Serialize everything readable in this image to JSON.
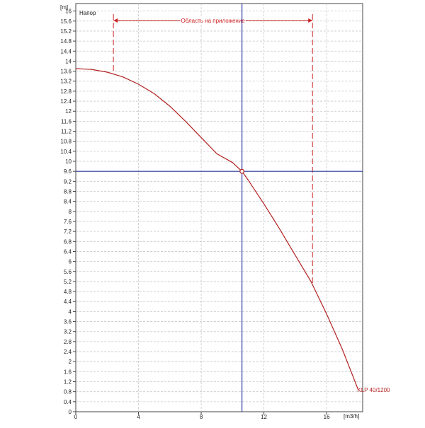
{
  "chart_data": {
    "type": "line",
    "title": "",
    "y_unit": "[m]",
    "x_unit": "[m3/h]",
    "y_series_title": "Напор",
    "xlim": [
      0,
      18.3
    ],
    "ylim": [
      0,
      16.3
    ],
    "x_ticks": [
      0,
      4,
      8,
      12,
      16
    ],
    "y_ticks": [
      0,
      0.4,
      0.8,
      1.2,
      1.6,
      2,
      2.4,
      2.8,
      3.2,
      3.6,
      4,
      4.4,
      4.8,
      5.2,
      5.6,
      6,
      6.4,
      6.8,
      7.2,
      7.6,
      8,
      8.4,
      8.8,
      9.2,
      9.6,
      10,
      10.4,
      10.8,
      11.2,
      11.6,
      12,
      12.4,
      12.8,
      13.2,
      13.6,
      14,
      14.4,
      14.8,
      15.2,
      15.6,
      16
    ],
    "grid": true,
    "series": [
      {
        "name": "KLP 40/1200",
        "color": "#b22222",
        "x": [
          0,
          1,
          2,
          3,
          4,
          5,
          6,
          7,
          8,
          9,
          10,
          10.6,
          11,
          12,
          13,
          14,
          15,
          16,
          17,
          18
        ],
        "y": [
          13.7,
          13.67,
          13.56,
          13.37,
          13.08,
          12.7,
          12.2,
          11.6,
          10.95,
          10.3,
          9.95,
          9.6,
          9.25,
          8.3,
          7.3,
          6.25,
          5.2,
          3.9,
          2.5,
          0.9
        ]
      }
    ],
    "operating_point": {
      "x": 10.6,
      "y": 9.6
    },
    "crosshair_color": "#2c3a9e",
    "application_range": {
      "label": "Область на приложение",
      "x_min": 2.4,
      "x_max": 15.1,
      "color": "#cc2222"
    }
  }
}
